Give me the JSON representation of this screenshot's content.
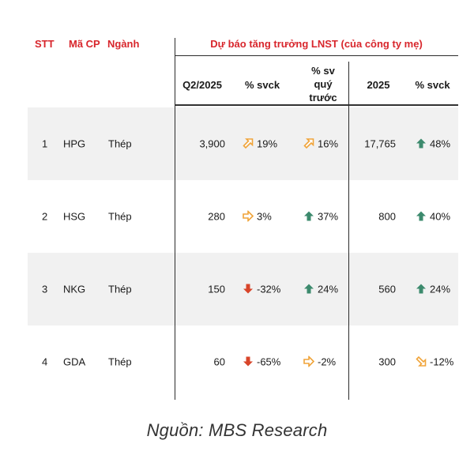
{
  "header": {
    "stt": "STT",
    "ma_cp": "Mã CP",
    "nganh": "Ngành",
    "group_title": "Dự báo tăng trưởng LNST (của công ty mẹ)",
    "q2": "Q2/2025",
    "svck1": "% svck",
    "sv_quy_line1": "% sv",
    "sv_quy_line2": "quý",
    "sv_quy_line3": "trước",
    "y2025": "2025",
    "svck2": "% svck"
  },
  "colors": {
    "header_red": "#d8262c",
    "up_green": "#3c8a6d",
    "down_red": "#d8452a",
    "orange": "#f0a43a"
  },
  "rows": [
    {
      "stt": "1",
      "code": "HPG",
      "sector": "Thép",
      "q2": "3,900",
      "svck1": "19%",
      "svck1_icon": "up-right-orange-arrow-icon",
      "svquy": "16%",
      "svquy_icon": "up-right-orange-arrow-icon",
      "y2025": "17,765",
      "svck2": "48%",
      "svck2_icon": "up-green-arrow-icon"
    },
    {
      "stt": "2",
      "code": "HSG",
      "sector": "Thép",
      "q2": "280",
      "svck1": "3%",
      "svck1_icon": "right-orange-arrow-icon",
      "svquy": "37%",
      "svquy_icon": "up-green-arrow-icon",
      "y2025": "800",
      "svck2": "40%",
      "svck2_icon": "up-green-arrow-icon"
    },
    {
      "stt": "3",
      "code": "NKG",
      "sector": "Thép",
      "q2": "150",
      "svck1": "-32%",
      "svck1_icon": "down-red-arrow-icon",
      "svquy": "24%",
      "svquy_icon": "up-green-arrow-icon",
      "y2025": "560",
      "svck2": "24%",
      "svck2_icon": "up-green-arrow-icon"
    },
    {
      "stt": "4",
      "code": "GDA",
      "sector": "Thép",
      "q2": "60",
      "svck1": "-65%",
      "svck1_icon": "down-red-arrow-icon",
      "svquy": "-2%",
      "svquy_icon": "right-orange-arrow-icon",
      "y2025": "300",
      "svck2": "-12%",
      "svck2_icon": "down-right-orange-arrow-icon"
    }
  ],
  "source": "Nguồn: MBS Research"
}
